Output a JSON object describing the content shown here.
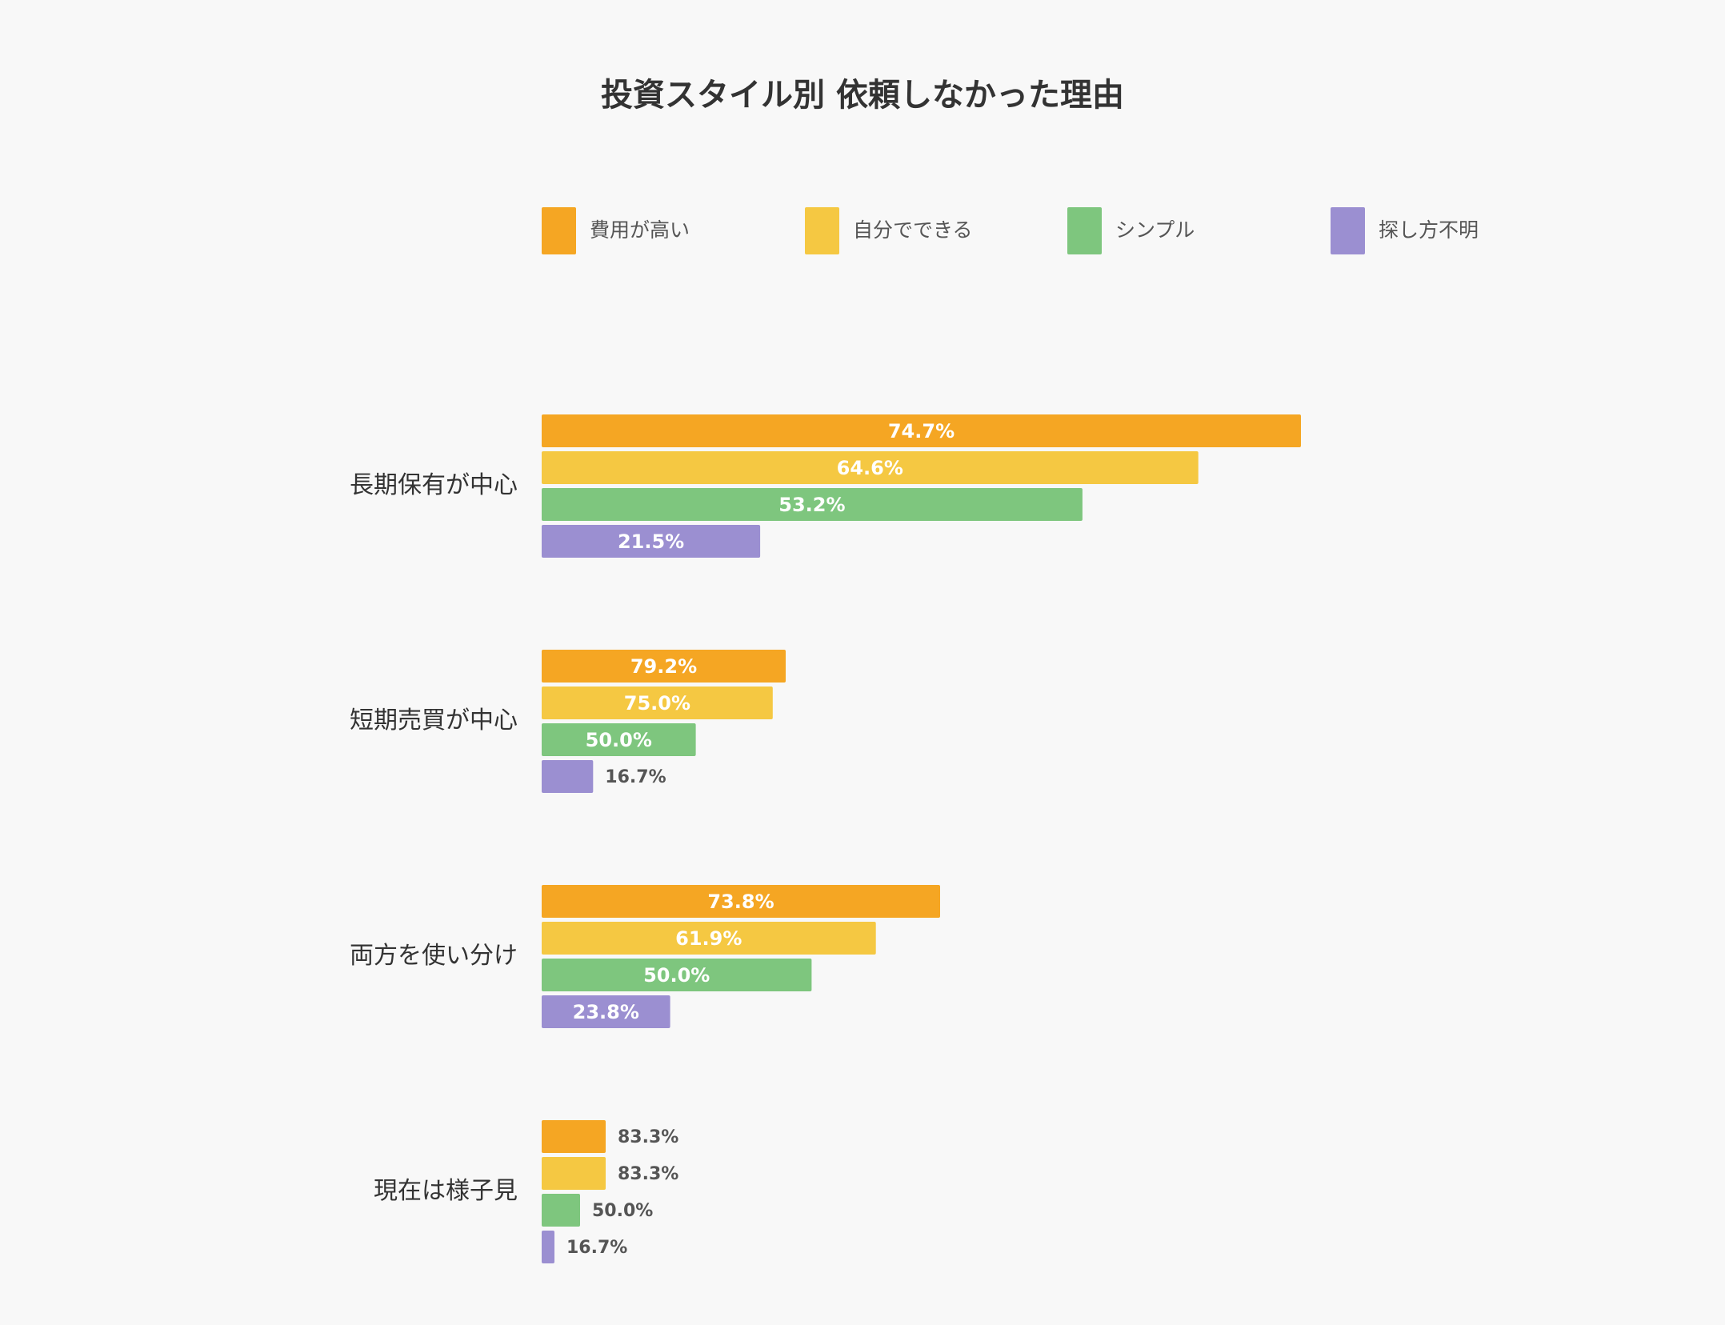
{
  "chart_data": {
    "type": "bar",
    "orientation": "horizontal",
    "title": "投資スタイル別 依頼しなかった理由",
    "categories": [
      "長期保有が中心",
      "短期売買が中心",
      "両方を使い分け",
      "現在は様子見"
    ],
    "series": [
      {
        "name": "費用が高い",
        "color": "#f5a623",
        "values": [
          74.7,
          79.2,
          73.8,
          83.3
        ],
        "labels": [
          "74.7%",
          "79.2%",
          "73.8%",
          "83.3%"
        ]
      },
      {
        "name": "自分でできる",
        "color": "#f5c842",
        "values": [
          64.6,
          75.0,
          61.9,
          83.3
        ],
        "labels": [
          "64.6%",
          "75.0%",
          "61.9%",
          "83.3%"
        ]
      },
      {
        "name": "シンプル",
        "color": "#7ec67e",
        "values": [
          53.2,
          50.0,
          50.0,
          50.0
        ],
        "labels": [
          "53.2%",
          "50.0%",
          "50.0%",
          "50.0%"
        ]
      },
      {
        "name": "探し方不明",
        "color": "#9b8fd1",
        "values": [
          21.5,
          16.7,
          23.8,
          16.7
        ],
        "labels": [
          "21.5%",
          "16.7%",
          "23.8%",
          "16.7%"
        ]
      }
    ],
    "legend_position": "top",
    "grid": false,
    "xlabel": "",
    "ylabel": ""
  }
}
